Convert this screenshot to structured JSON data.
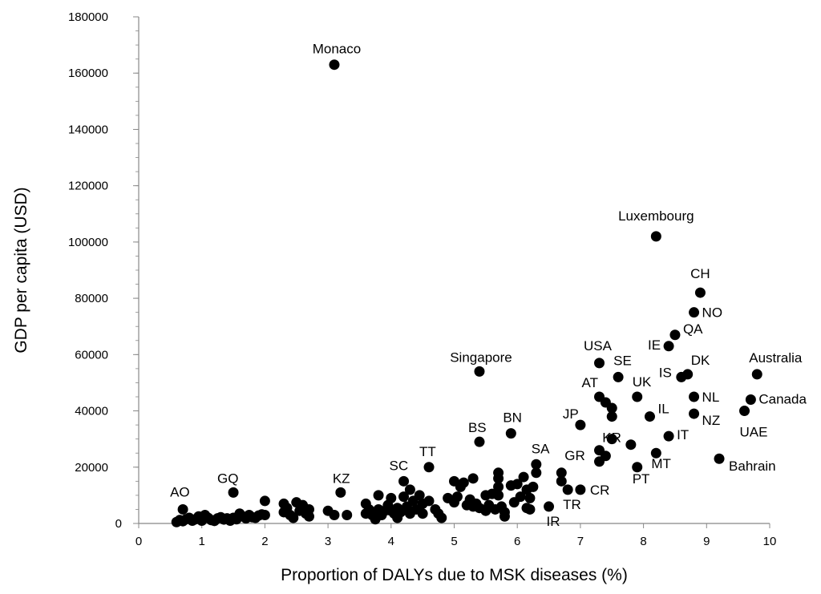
{
  "chart_data": {
    "type": "scatter",
    "title": "",
    "xlabel": "Proportion of DALYs due to MSK diseases (%)",
    "ylabel": "GDP per capita (USD)",
    "xlim": [
      0,
      10
    ],
    "ylim": [
      0,
      180000
    ],
    "x_ticks": [
      "0",
      "1",
      "2",
      "3",
      "4",
      "5",
      "6",
      "7",
      "8",
      "9",
      "10"
    ],
    "y_ticks": [
      "0",
      "20000",
      "40000",
      "60000",
      "80000",
      "100000",
      "120000",
      "140000",
      "160000",
      "180000"
    ],
    "grid": false,
    "marker_color": "#000000",
    "labeled_points": [
      {
        "label": "Monaco",
        "x": 3.1,
        "y": 163000
      },
      {
        "label": "Luxembourg",
        "x": 8.2,
        "y": 102000
      },
      {
        "label": "CH",
        "x": 8.9,
        "y": 82000
      },
      {
        "label": "NO",
        "x": 8.8,
        "y": 75000
      },
      {
        "label": "QA",
        "x": 8.5,
        "y": 67000
      },
      {
        "label": "IE",
        "x": 8.4,
        "y": 63000
      },
      {
        "label": "USA",
        "x": 7.3,
        "y": 57000
      },
      {
        "label": "Singapore",
        "x": 5.4,
        "y": 54000
      },
      {
        "label": "IS",
        "x": 8.6,
        "y": 52000
      },
      {
        "label": "DK",
        "x": 8.7,
        "y": 53000
      },
      {
        "label": "Australia",
        "x": 9.8,
        "y": 53000
      },
      {
        "label": "SE",
        "x": 7.6,
        "y": 52000
      },
      {
        "label": "AT",
        "x": 7.3,
        "y": 45000
      },
      {
        "label": "UK",
        "x": 7.9,
        "y": 45000
      },
      {
        "label": "NL",
        "x": 8.8,
        "y": 45000
      },
      {
        "label": "Canada",
        "x": 9.7,
        "y": 44000
      },
      {
        "label": "IL",
        "x": 8.1,
        "y": 38000
      },
      {
        "label": "NZ",
        "x": 8.8,
        "y": 39000
      },
      {
        "label": "UAE",
        "x": 9.6,
        "y": 40000
      },
      {
        "label": "JP",
        "x": 7.0,
        "y": 35000
      },
      {
        "label": "BN",
        "x": 5.9,
        "y": 32000
      },
      {
        "label": "BS",
        "x": 5.4,
        "y": 29000
      },
      {
        "label": "KR",
        "x": 7.8,
        "y": 28000
      },
      {
        "label": "IT",
        "x": 8.4,
        "y": 31000
      },
      {
        "label": "MT",
        "x": 8.2,
        "y": 25000
      },
      {
        "label": "Bahrain",
        "x": 9.2,
        "y": 23000
      },
      {
        "label": "SA",
        "x": 6.3,
        "y": 21000
      },
      {
        "label": "TT",
        "x": 4.6,
        "y": 20000
      },
      {
        "label": "GR",
        "x": 6.7,
        "y": 18000
      },
      {
        "label": "PT",
        "x": 7.9,
        "y": 20000
      },
      {
        "label": "SC",
        "x": 4.2,
        "y": 15000
      },
      {
        "label": "CR",
        "x": 7.0,
        "y": 12000
      },
      {
        "label": "TR",
        "x": 6.8,
        "y": 12000
      },
      {
        "label": "IR",
        "x": 6.5,
        "y": 6000
      },
      {
        "label": "GQ",
        "x": 1.5,
        "y": 11000
      },
      {
        "label": "KZ",
        "x": 3.2,
        "y": 11000
      },
      {
        "label": "AO",
        "x": 0.7,
        "y": 5000
      }
    ],
    "unlabeled_points": [
      {
        "x": 0.6,
        "y": 500
      },
      {
        "x": 0.65,
        "y": 1200
      },
      {
        "x": 0.7,
        "y": 800
      },
      {
        "x": 0.75,
        "y": 1500
      },
      {
        "x": 0.8,
        "y": 2000
      },
      {
        "x": 0.85,
        "y": 1000
      },
      {
        "x": 0.9,
        "y": 1500
      },
      {
        "x": 0.95,
        "y": 2500
      },
      {
        "x": 1.0,
        "y": 1000
      },
      {
        "x": 1.05,
        "y": 3000
      },
      {
        "x": 1.1,
        "y": 2000
      },
      {
        "x": 1.15,
        "y": 1200
      },
      {
        "x": 1.2,
        "y": 900
      },
      {
        "x": 1.25,
        "y": 1800
      },
      {
        "x": 1.3,
        "y": 2200
      },
      {
        "x": 1.35,
        "y": 1400
      },
      {
        "x": 1.4,
        "y": 1800
      },
      {
        "x": 1.45,
        "y": 1000
      },
      {
        "x": 1.5,
        "y": 2000
      },
      {
        "x": 1.55,
        "y": 1500
      },
      {
        "x": 1.6,
        "y": 3500
      },
      {
        "x": 1.65,
        "y": 2500
      },
      {
        "x": 1.7,
        "y": 1800
      },
      {
        "x": 1.75,
        "y": 3000
      },
      {
        "x": 1.8,
        "y": 2200
      },
      {
        "x": 1.85,
        "y": 2000
      },
      {
        "x": 1.9,
        "y": 2800
      },
      {
        "x": 1.95,
        "y": 3200
      },
      {
        "x": 2.0,
        "y": 8000
      },
      {
        "x": 2.0,
        "y": 3000
      },
      {
        "x": 2.3,
        "y": 7000
      },
      {
        "x": 2.3,
        "y": 4000
      },
      {
        "x": 2.35,
        "y": 5500
      },
      {
        "x": 2.4,
        "y": 3000
      },
      {
        "x": 2.45,
        "y": 2000
      },
      {
        "x": 2.5,
        "y": 7500
      },
      {
        "x": 2.55,
        "y": 4500
      },
      {
        "x": 2.6,
        "y": 6500
      },
      {
        "x": 2.65,
        "y": 3500
      },
      {
        "x": 2.7,
        "y": 5000
      },
      {
        "x": 2.7,
        "y": 2500
      },
      {
        "x": 3.0,
        "y": 4500
      },
      {
        "x": 3.1,
        "y": 3000
      },
      {
        "x": 3.3,
        "y": 3000
      },
      {
        "x": 3.6,
        "y": 7000
      },
      {
        "x": 3.6,
        "y": 3500
      },
      {
        "x": 3.65,
        "y": 5000
      },
      {
        "x": 3.7,
        "y": 3000
      },
      {
        "x": 3.75,
        "y": 1500
      },
      {
        "x": 3.8,
        "y": 10000
      },
      {
        "x": 3.8,
        "y": 5000
      },
      {
        "x": 3.85,
        "y": 3000
      },
      {
        "x": 3.9,
        "y": 4500
      },
      {
        "x": 3.95,
        "y": 6500
      },
      {
        "x": 4.0,
        "y": 9000
      },
      {
        "x": 4.0,
        "y": 4500
      },
      {
        "x": 4.05,
        "y": 3500
      },
      {
        "x": 4.1,
        "y": 2000
      },
      {
        "x": 4.1,
        "y": 5500
      },
      {
        "x": 4.15,
        "y": 4000
      },
      {
        "x": 4.2,
        "y": 9500
      },
      {
        "x": 4.25,
        "y": 6000
      },
      {
        "x": 4.3,
        "y": 3500
      },
      {
        "x": 4.3,
        "y": 12000
      },
      {
        "x": 4.35,
        "y": 8000
      },
      {
        "x": 4.4,
        "y": 5000
      },
      {
        "x": 4.45,
        "y": 10000
      },
      {
        "x": 4.5,
        "y": 3500
      },
      {
        "x": 4.5,
        "y": 7000
      },
      {
        "x": 4.6,
        "y": 8000
      },
      {
        "x": 4.7,
        "y": 5000
      },
      {
        "x": 4.75,
        "y": 3500
      },
      {
        "x": 4.8,
        "y": 2000
      },
      {
        "x": 4.9,
        "y": 9000
      },
      {
        "x": 5.0,
        "y": 15000
      },
      {
        "x": 5.0,
        "y": 7500
      },
      {
        "x": 5.05,
        "y": 9500
      },
      {
        "x": 5.1,
        "y": 13000
      },
      {
        "x": 5.15,
        "y": 14500
      },
      {
        "x": 5.2,
        "y": 6500
      },
      {
        "x": 5.25,
        "y": 8500
      },
      {
        "x": 5.3,
        "y": 16000
      },
      {
        "x": 5.3,
        "y": 6000
      },
      {
        "x": 5.35,
        "y": 7000
      },
      {
        "x": 5.4,
        "y": 5500
      },
      {
        "x": 5.5,
        "y": 10000
      },
      {
        "x": 5.5,
        "y": 4500
      },
      {
        "x": 5.55,
        "y": 6500
      },
      {
        "x": 5.6,
        "y": 10500
      },
      {
        "x": 5.65,
        "y": 5000
      },
      {
        "x": 5.7,
        "y": 18000
      },
      {
        "x": 5.7,
        "y": 16000
      },
      {
        "x": 5.7,
        "y": 13000
      },
      {
        "x": 5.7,
        "y": 10000
      },
      {
        "x": 5.75,
        "y": 6000
      },
      {
        "x": 5.8,
        "y": 4000
      },
      {
        "x": 5.8,
        "y": 2500
      },
      {
        "x": 5.9,
        "y": 13500
      },
      {
        "x": 5.95,
        "y": 7500
      },
      {
        "x": 6.0,
        "y": 14000
      },
      {
        "x": 6.05,
        "y": 9500
      },
      {
        "x": 6.1,
        "y": 16500
      },
      {
        "x": 6.15,
        "y": 12000
      },
      {
        "x": 6.15,
        "y": 5500
      },
      {
        "x": 6.2,
        "y": 9000
      },
      {
        "x": 6.2,
        "y": 5000
      },
      {
        "x": 6.25,
        "y": 13000
      },
      {
        "x": 6.3,
        "y": 18000
      },
      {
        "x": 6.7,
        "y": 15000
      },
      {
        "x": 7.3,
        "y": 26000
      },
      {
        "x": 7.3,
        "y": 22000
      },
      {
        "x": 7.4,
        "y": 24000
      },
      {
        "x": 7.4,
        "y": 43000
      },
      {
        "x": 7.5,
        "y": 41000
      },
      {
        "x": 7.5,
        "y": 38000
      },
      {
        "x": 7.5,
        "y": 30000
      }
    ]
  }
}
